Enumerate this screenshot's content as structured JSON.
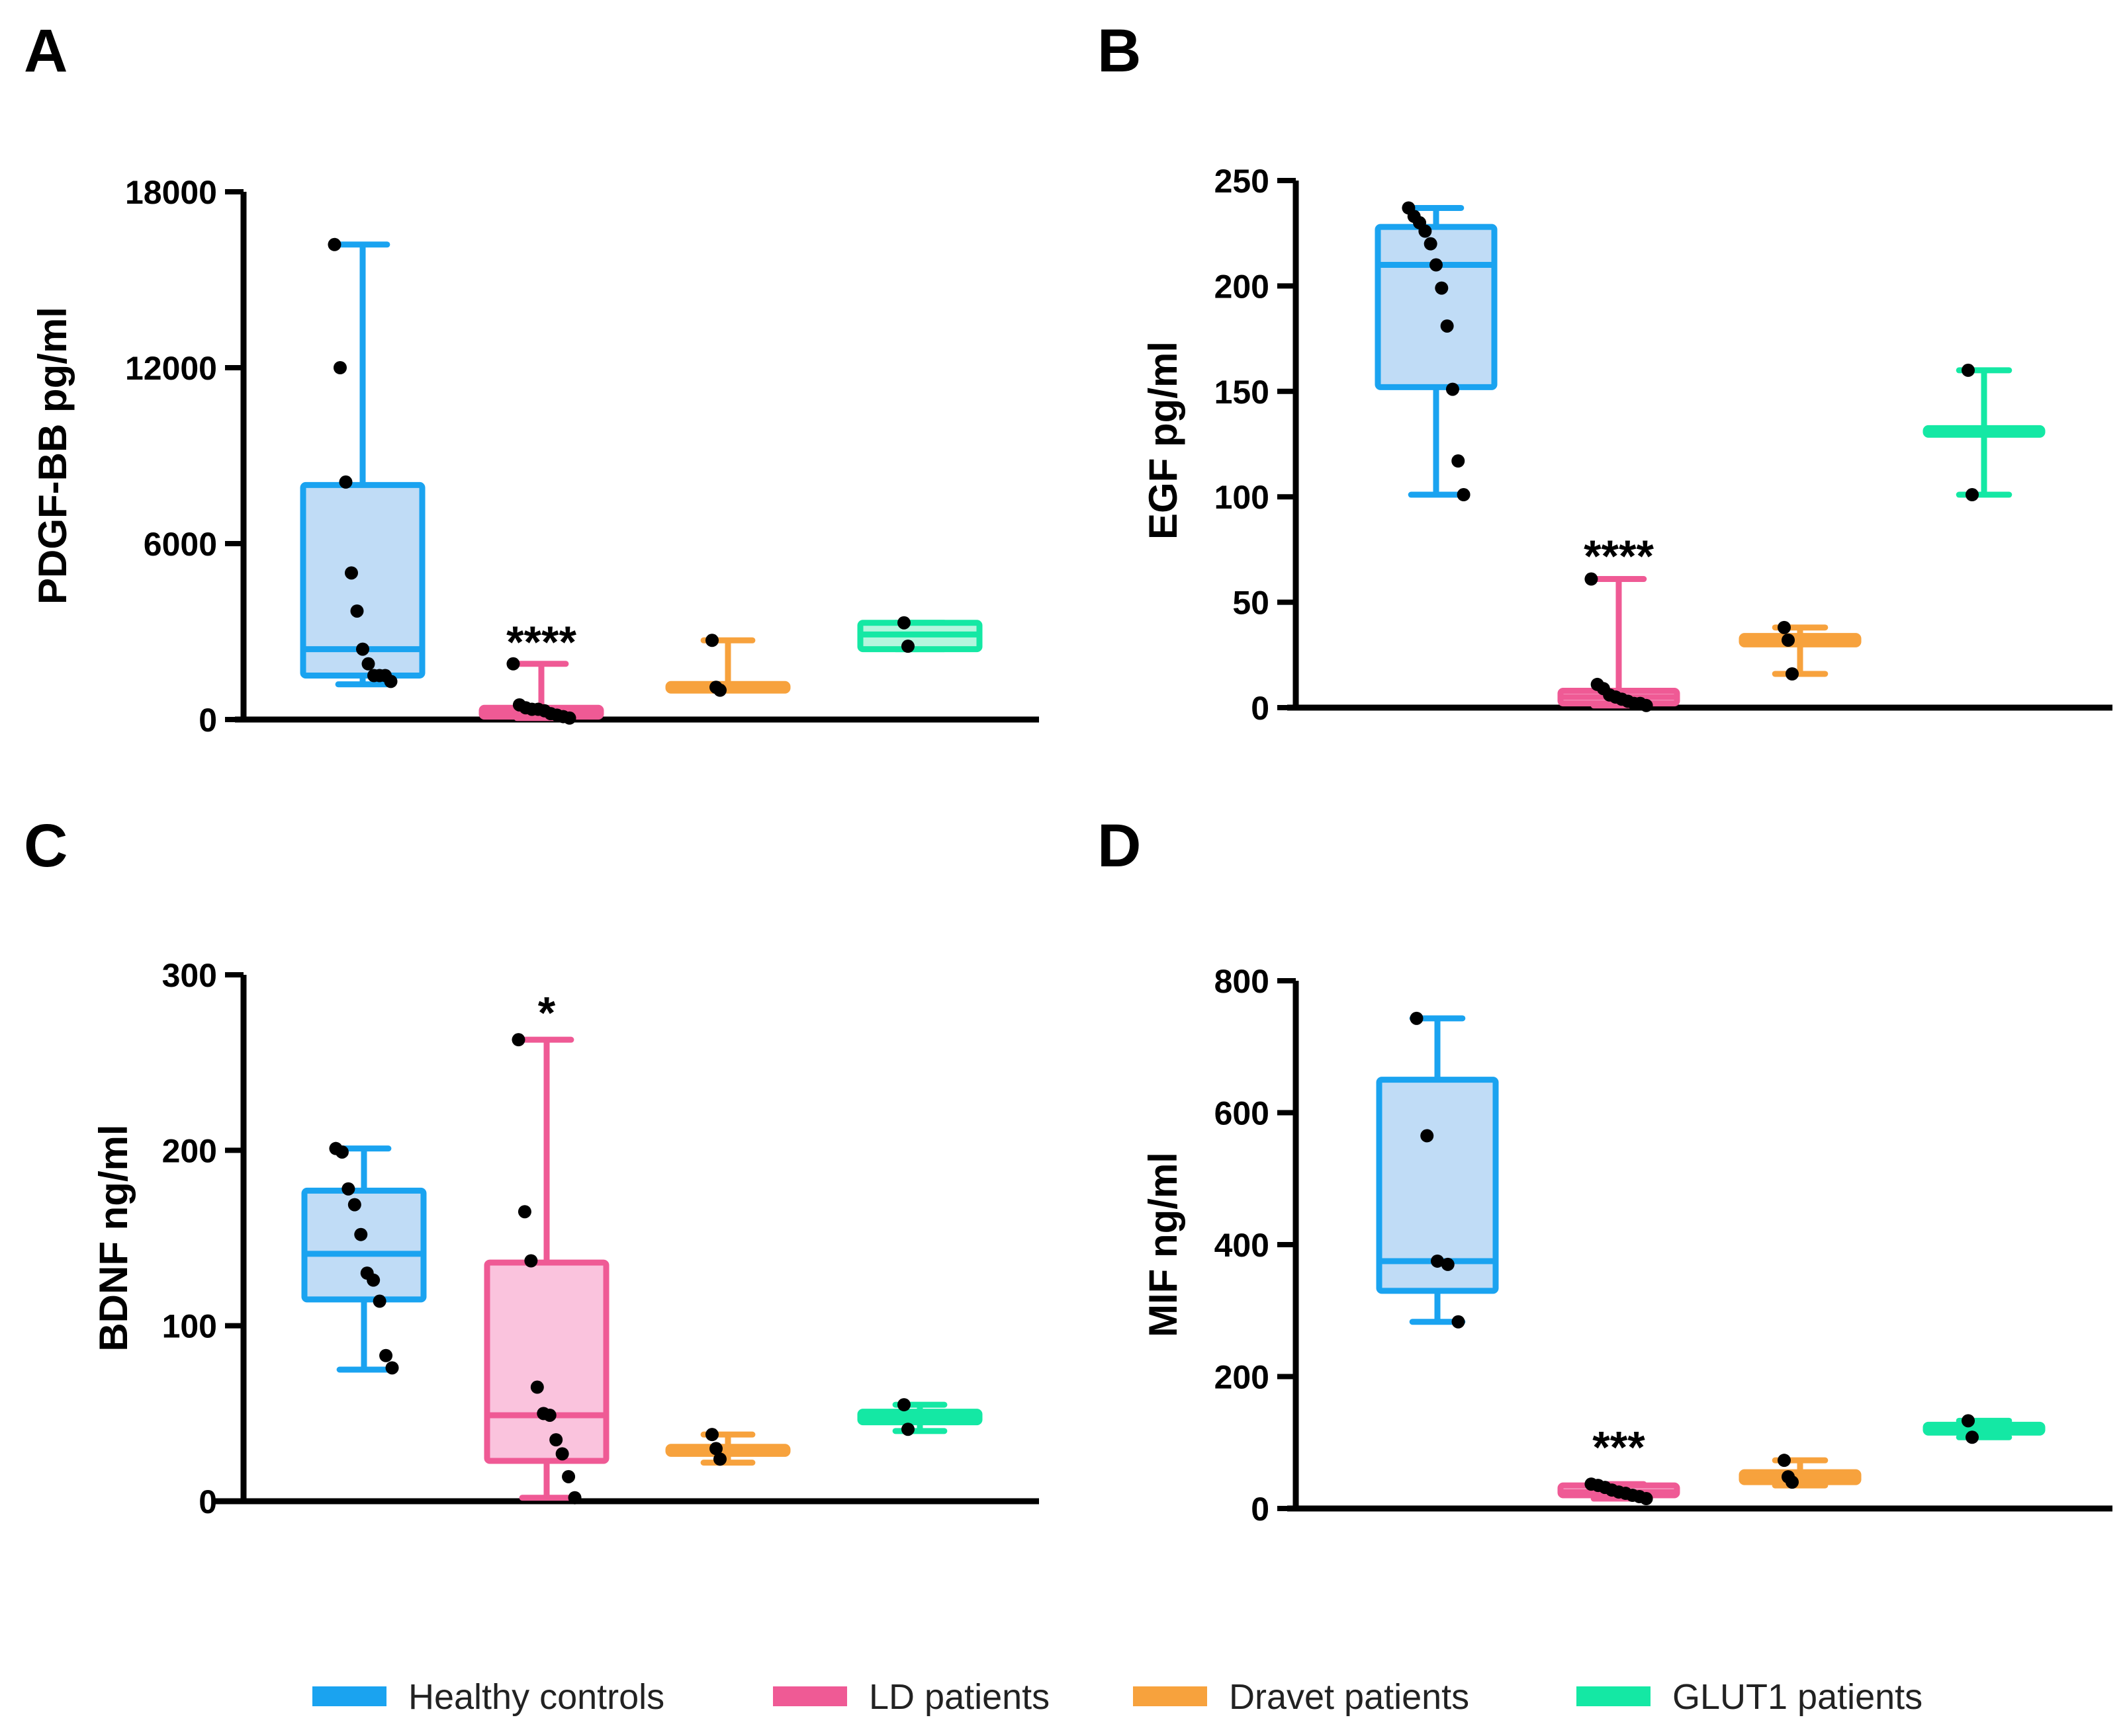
{
  "chart_data": [
    {
      "panel": "A",
      "type": "box",
      "ylabel": "PDGF-BB pg/ml",
      "ylim": [
        0,
        18000
      ],
      "yticks": [
        0,
        6000,
        12000,
        18000
      ],
      "groups": [
        {
          "name": "Healthy controls",
          "color": "#1aa3f0",
          "fill": "#c0dcf6",
          "min": 1200,
          "q1": 1500,
          "median": 2400,
          "q3": 8000,
          "max": 16200,
          "points": [
            16200,
            12000,
            8100,
            5000,
            3700,
            2400,
            1900,
            1500,
            1500,
            1500,
            1300
          ]
        },
        {
          "name": "LD patients",
          "color": "#ef5a95",
          "fill": "#fac3dd",
          "min": 50,
          "q1": 100,
          "median": 250,
          "q3": 400,
          "max": 1900,
          "points": [
            1900,
            500,
            400,
            350,
            350,
            300,
            200,
            150,
            100,
            50
          ]
        },
        {
          "name": "Dravet patients",
          "color": "#f7a23d",
          "fill": "#fbd6a6",
          "min": 1000,
          "q1": 1000,
          "median": 1100,
          "q3": 1200,
          "max": 2700,
          "points": [
            2700,
            1100,
            1000
          ]
        },
        {
          "name": "GLUT1 patients",
          "color": "#14e8a4",
          "fill": "#b3f6de",
          "min": 2400,
          "q1": 2400,
          "median": 2900,
          "q3": 3300,
          "max": 3300,
          "points": [
            3300,
            2500
          ]
        }
      ],
      "annotations": [
        {
          "group": 1,
          "text": "****",
          "value": 2800
        }
      ]
    },
    {
      "panel": "B",
      "type": "box",
      "ylabel": "EGF pg/ml",
      "ylim": [
        0,
        250
      ],
      "yticks": [
        0,
        50,
        100,
        150,
        200,
        250
      ],
      "groups": [
        {
          "name": "Healthy controls",
          "color": "#1aa3f0",
          "fill": "#c0dcf6",
          "min": 101,
          "q1": 152,
          "median": 210,
          "q3": 228,
          "max": 237,
          "points": [
            237,
            233,
            230,
            226,
            220,
            210,
            199,
            181,
            151,
            117,
            101
          ]
        },
        {
          "name": "LD patients",
          "color": "#ef5a95",
          "fill": "#fac3dd",
          "min": 1,
          "q1": 2,
          "median": 5,
          "q3": 8,
          "max": 61,
          "points": [
            61,
            11,
            9,
            6,
            5,
            4,
            3,
            2,
            2,
            1
          ]
        },
        {
          "name": "Dravet patients",
          "color": "#f7a23d",
          "fill": "#fbd6a6",
          "min": 16,
          "q1": 30,
          "median": 32,
          "q3": 34,
          "max": 38,
          "points": [
            38,
            32,
            16
          ]
        },
        {
          "name": "GLUT1 patients",
          "color": "#14e8a4",
          "fill": "#b3f6de",
          "min": 101,
          "q1": 130,
          "median": 131,
          "q3": 132,
          "max": 160,
          "points": [
            160,
            101
          ]
        }
      ],
      "annotations": [
        {
          "group": 1,
          "text": "****",
          "value": 74
        }
      ]
    },
    {
      "panel": "C",
      "type": "box",
      "ylabel": "BDNF ng/ml",
      "ylim": [
        0,
        300
      ],
      "yticks": [
        0,
        100,
        200,
        300
      ],
      "groups": [
        {
          "name": "Healthy controls",
          "color": "#1aa3f0",
          "fill": "#c0dcf6",
          "min": 75,
          "q1": 115,
          "median": 141,
          "q3": 177,
          "max": 201,
          "points": [
            201,
            199,
            178,
            169,
            152,
            130,
            126,
            114,
            83,
            76
          ]
        },
        {
          "name": "LD patients",
          "color": "#ef5a95",
          "fill": "#fac3dd",
          "min": 2,
          "q1": 23,
          "median": 49,
          "q3": 136,
          "max": 263,
          "points": [
            263,
            165,
            137,
            65,
            50,
            49,
            35,
            27,
            14,
            2
          ]
        },
        {
          "name": "Dravet patients",
          "color": "#f7a23d",
          "fill": "#fbd6a6",
          "min": 22,
          "q1": 27,
          "median": 29,
          "q3": 31,
          "max": 38,
          "points": [
            38,
            30,
            24
          ]
        },
        {
          "name": "GLUT1 patients",
          "color": "#14e8a4",
          "fill": "#b3f6de",
          "min": 40,
          "q1": 45,
          "median": 48,
          "q3": 51,
          "max": 55,
          "points": [
            55,
            41
          ]
        }
      ],
      "annotations": [
        {
          "group": 1,
          "text": "*",
          "value": 281
        }
      ]
    },
    {
      "panel": "D",
      "type": "box",
      "ylabel": "MIF ng/ml",
      "ylim": [
        0,
        800
      ],
      "yticks": [
        0,
        200,
        400,
        600,
        800
      ],
      "groups": [
        {
          "name": "Healthy controls",
          "color": "#1aa3f0",
          "fill": "#c0dcf6",
          "min": 283,
          "q1": 330,
          "median": 375,
          "q3": 650,
          "max": 743,
          "points": [
            743,
            565,
            375,
            370,
            283
          ]
        },
        {
          "name": "LD patients",
          "color": "#ef5a95",
          "fill": "#fac3dd",
          "min": 15,
          "q1": 20,
          "median": 25,
          "q3": 35,
          "max": 37,
          "points": [
            37,
            35,
            32,
            28,
            25,
            23,
            20,
            18,
            15
          ]
        },
        {
          "name": "Dravet patients",
          "color": "#f7a23d",
          "fill": "#fbd6a6",
          "min": 35,
          "q1": 40,
          "median": 48,
          "q3": 55,
          "max": 73,
          "points": [
            73,
            48,
            40
          ]
        },
        {
          "name": "GLUT1 patients",
          "color": "#14e8a4",
          "fill": "#b3f6de",
          "min": 108,
          "q1": 115,
          "median": 121,
          "q3": 127,
          "max": 133,
          "points": [
            133,
            108
          ]
        }
      ],
      "annotations": [
        {
          "group": 1,
          "text": "***",
          "value": 100
        }
      ]
    }
  ],
  "legend": [
    {
      "label": "Healthy controls",
      "color": "#1aa3f0"
    },
    {
      "label": "LD patients",
      "color": "#ef5a95"
    },
    {
      "label": "Dravet patients",
      "color": "#f7a23d"
    },
    {
      "label": "GLUT1 patients",
      "color": "#14e8a4"
    }
  ]
}
